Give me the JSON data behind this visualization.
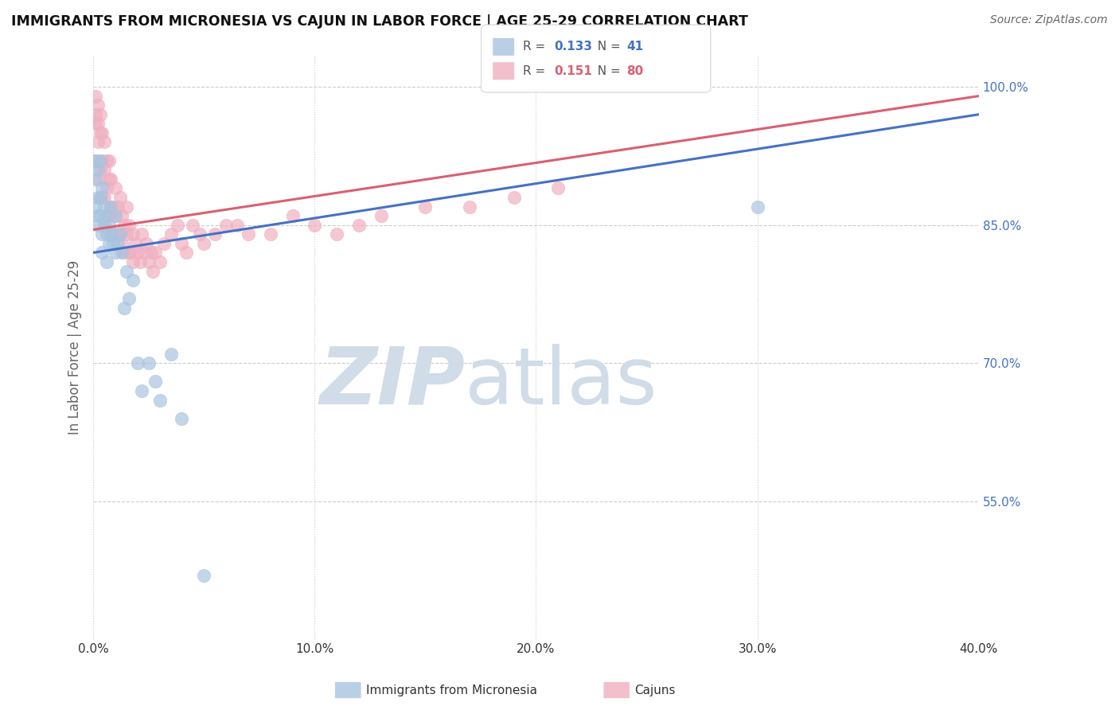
{
  "title": "IMMIGRANTS FROM MICRONESIA VS CAJUN IN LABOR FORCE | AGE 25-29 CORRELATION CHART",
  "source_text": "Source: ZipAtlas.com",
  "ylabel": "In Labor Force | Age 25-29",
  "xlim": [
    0.0,
    0.4
  ],
  "ylim": [
    0.4,
    1.035
  ],
  "xticks": [
    0.0,
    0.1,
    0.2,
    0.3,
    0.4
  ],
  "xticklabels": [
    "0.0%",
    "10.0%",
    "20.0%",
    "30.0%",
    "40.0%"
  ],
  "yticks_right": [
    0.55,
    0.7,
    0.85,
    1.0
  ],
  "yticklabels_right": [
    "55.0%",
    "70.0%",
    "85.0%",
    "100.0%"
  ],
  "blue_color": "#a8c4e0",
  "pink_color": "#f0b0c0",
  "trend_blue": "#4472c4",
  "trend_pink": "#d96070",
  "R_blue": 0.133,
  "N_blue": 41,
  "R_pink": 0.151,
  "N_pink": 80,
  "watermark_zip": "ZIP",
  "watermark_atlas": "atlas",
  "watermark_color": "#d0dce8",
  "blue_x": [
    0.001,
    0.001,
    0.001,
    0.002,
    0.002,
    0.002,
    0.002,
    0.003,
    0.003,
    0.003,
    0.004,
    0.004,
    0.004,
    0.005,
    0.005,
    0.005,
    0.006,
    0.006,
    0.007,
    0.007,
    0.008,
    0.008,
    0.009,
    0.01,
    0.01,
    0.011,
    0.012,
    0.013,
    0.014,
    0.015,
    0.016,
    0.018,
    0.02,
    0.022,
    0.025,
    0.028,
    0.03,
    0.035,
    0.04,
    0.05,
    0.3
  ],
  "blue_y": [
    0.92,
    0.9,
    0.87,
    0.91,
    0.88,
    0.86,
    0.85,
    0.92,
    0.88,
    0.86,
    0.89,
    0.84,
    0.82,
    0.87,
    0.86,
    0.85,
    0.84,
    0.81,
    0.85,
    0.83,
    0.84,
    0.87,
    0.83,
    0.86,
    0.82,
    0.83,
    0.84,
    0.82,
    0.76,
    0.8,
    0.77,
    0.79,
    0.7,
    0.67,
    0.7,
    0.68,
    0.66,
    0.71,
    0.64,
    0.47,
    0.87
  ],
  "pink_x": [
    0.001,
    0.001,
    0.001,
    0.001,
    0.002,
    0.002,
    0.002,
    0.002,
    0.003,
    0.003,
    0.003,
    0.003,
    0.004,
    0.004,
    0.004,
    0.005,
    0.005,
    0.005,
    0.005,
    0.006,
    0.006,
    0.006,
    0.007,
    0.007,
    0.007,
    0.008,
    0.008,
    0.008,
    0.009,
    0.009,
    0.01,
    0.01,
    0.011,
    0.011,
    0.012,
    0.012,
    0.013,
    0.013,
    0.014,
    0.014,
    0.015,
    0.015,
    0.016,
    0.016,
    0.017,
    0.018,
    0.018,
    0.019,
    0.02,
    0.021,
    0.022,
    0.023,
    0.024,
    0.025,
    0.026,
    0.027,
    0.028,
    0.03,
    0.032,
    0.035,
    0.038,
    0.04,
    0.042,
    0.045,
    0.048,
    0.05,
    0.055,
    0.06,
    0.065,
    0.07,
    0.08,
    0.09,
    0.1,
    0.11,
    0.12,
    0.13,
    0.15,
    0.17,
    0.19,
    0.21
  ],
  "pink_y": [
    0.99,
    0.97,
    0.96,
    0.92,
    0.98,
    0.96,
    0.94,
    0.9,
    0.97,
    0.95,
    0.91,
    0.88,
    0.95,
    0.92,
    0.88,
    0.94,
    0.91,
    0.88,
    0.85,
    0.92,
    0.89,
    0.86,
    0.92,
    0.9,
    0.86,
    0.9,
    0.87,
    0.84,
    0.87,
    0.84,
    0.89,
    0.86,
    0.87,
    0.84,
    0.88,
    0.84,
    0.86,
    0.83,
    0.85,
    0.82,
    0.87,
    0.84,
    0.82,
    0.85,
    0.82,
    0.84,
    0.81,
    0.83,
    0.82,
    0.81,
    0.84,
    0.82,
    0.83,
    0.81,
    0.82,
    0.8,
    0.82,
    0.81,
    0.83,
    0.84,
    0.85,
    0.83,
    0.82,
    0.85,
    0.84,
    0.83,
    0.84,
    0.85,
    0.85,
    0.84,
    0.84,
    0.86,
    0.85,
    0.84,
    0.85,
    0.86,
    0.87,
    0.87,
    0.88,
    0.89
  ],
  "grid_color": "#cccccc",
  "bg_color": "#ffffff",
  "axis_label_color": "#666666",
  "right_tick_color": "#4472c4",
  "tick_label_color": "#333333",
  "legend_box_color": "#dddddd",
  "bottom_legend_blue_label": "Immigrants from Micronesia",
  "bottom_legend_pink_label": "Cajuns"
}
